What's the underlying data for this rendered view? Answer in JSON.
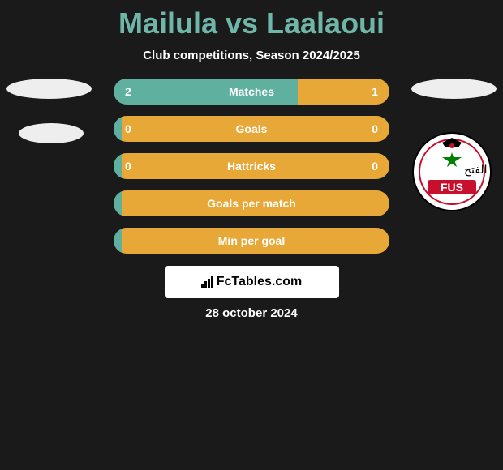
{
  "header": {
    "title": "Mailula vs Laalaoui",
    "subtitle": "Club competitions, Season 2024/2025"
  },
  "colors": {
    "title_color": "#6fb5a8",
    "left_bar": "#5fb09f",
    "right_bar": "#e8a838",
    "background": "#1a1a1a"
  },
  "stats": [
    {
      "label": "Matches",
      "left_value": "2",
      "right_value": "1",
      "left_pct": 66.7,
      "right_pct": 33.3,
      "show_values": true
    },
    {
      "label": "Goals",
      "left_value": "0",
      "right_value": "0",
      "left_pct": 3,
      "right_pct": 97,
      "show_values": true
    },
    {
      "label": "Hattricks",
      "left_value": "0",
      "right_value": "0",
      "left_pct": 3,
      "right_pct": 97,
      "show_values": true
    },
    {
      "label": "Goals per match",
      "left_value": "",
      "right_value": "",
      "left_pct": 3,
      "right_pct": 97,
      "show_values": false
    },
    {
      "label": "Min per goal",
      "left_value": "",
      "right_value": "",
      "left_pct": 3,
      "right_pct": 97,
      "show_values": false
    }
  ],
  "footer": {
    "brand": "FcTables.com",
    "date": "28 october 2024"
  }
}
